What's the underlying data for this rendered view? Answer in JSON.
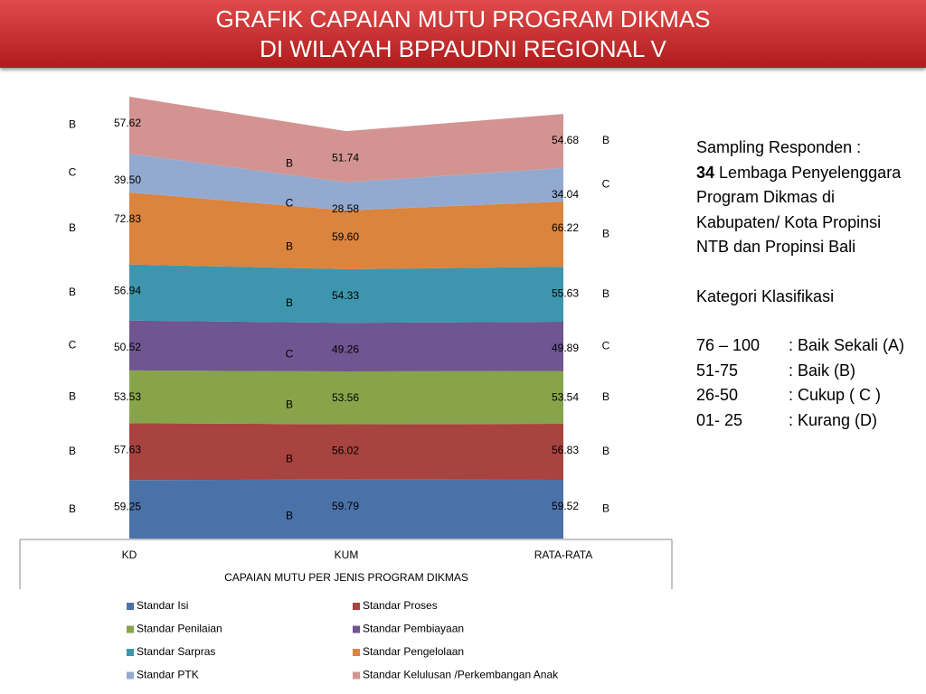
{
  "chart_data": {
    "type": "stacked-area",
    "title": [
      "GRAFIK CAPAIAN MUTU PROGRAM DIKMAS",
      "DI WILAYAH BPPAUDNI REGIONAL V"
    ],
    "x_label": "CAPAIAN MUTU PER JENIS PROGRAM DIKMAS",
    "categories": [
      "KD",
      "KUM",
      "RATA-RATA"
    ],
    "series": [
      {
        "name": "Standar Isi",
        "color": "#4a72a8",
        "values": [
          59.25,
          59.79,
          59.52
        ],
        "value_labels": [
          "59.25",
          "59.79",
          "59.52"
        ],
        "grades": [
          "B",
          "B",
          "B"
        ]
      },
      {
        "name": "Standar Proses",
        "color": "#a84340",
        "values": [
          57.63,
          56.02,
          56.83
        ],
        "value_labels": [
          "57.63",
          "56.02",
          "56.83"
        ],
        "grades": [
          "B",
          "B",
          "B"
        ]
      },
      {
        "name": "Standar Penilaian",
        "color": "#87a44a",
        "values": [
          53.53,
          53.56,
          53.54
        ],
        "value_labels": [
          "53.53",
          "53.56",
          "53.54"
        ],
        "grades": [
          "B",
          "B",
          "B"
        ]
      },
      {
        "name": "Standar Pembiayaan",
        "color": "#6f5591",
        "values": [
          50.52,
          49.26,
          49.89
        ],
        "value_labels": [
          "50.52",
          "49.26",
          "49.89"
        ],
        "grades": [
          "C",
          "C",
          "C"
        ]
      },
      {
        "name": "Standar Sarpras",
        "color": "#3d96ad",
        "values": [
          56.94,
          54.33,
          55.63
        ],
        "value_labels": [
          "56.94",
          "54.33",
          "55.63"
        ],
        "grades": [
          "B",
          "B",
          "B"
        ]
      },
      {
        "name": "Standar Pengelolaan",
        "color": "#db843d",
        "values": [
          72.83,
          59.6,
          66.22
        ],
        "value_labels": [
          "72.83",
          "59.60",
          "66.22"
        ],
        "grades": [
          "B",
          "B",
          "B"
        ]
      },
      {
        "name": "Standar PTK",
        "color": "#93a9cf",
        "values": [
          39.5,
          28.58,
          34.04
        ],
        "value_labels": [
          "39.50",
          "28.58",
          "34.04"
        ],
        "grades": [
          "C",
          "C",
          "C"
        ]
      },
      {
        "name": "Standar Kelulusan /Perkembangan Anak",
        "color": "#d29391",
        "values": [
          57.62,
          51.74,
          54.68
        ],
        "value_labels": [
          "57.62",
          "51.74",
          "54.68"
        ],
        "grades": [
          "B",
          "B",
          "B"
        ]
      }
    ]
  },
  "side_panel": {
    "sampling_label": "Sampling Responden  :",
    "count": 34,
    "description": "Lembaga Penyelenggara Program Dikmas di Kabupaten/ Kota  Propinsi NTB dan Propinsi Bali",
    "category_title": "Kategori Klasifikasi",
    "classes": [
      {
        "range": "76 – 100",
        "label": ": Baik Sekali (A)"
      },
      {
        "range": "51-75",
        "label": ": Baik (B)"
      },
      {
        "range": "26-50",
        "label": ": Cukup ( C )"
      },
      {
        "range": "01- 25",
        "label": ": Kurang (D)"
      }
    ]
  }
}
